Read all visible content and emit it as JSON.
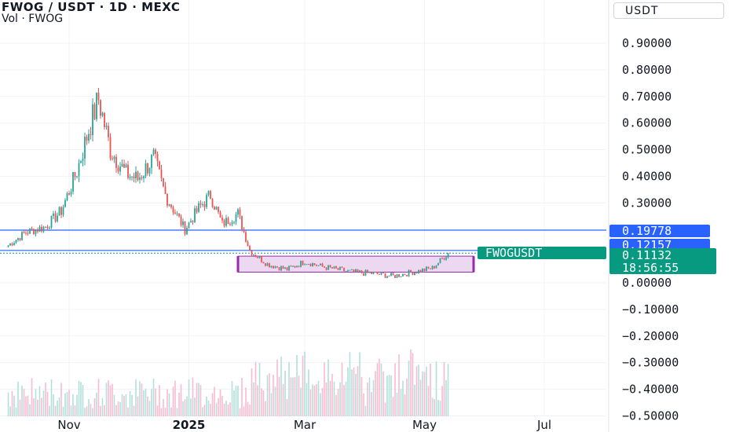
{
  "header": {
    "title": "FWOG / USDT · 1D · MEXC",
    "volume_label": "Vol · FWOG",
    "currency": "USDT"
  },
  "price_tags": {
    "upper_line": "0.19778",
    "lower_line": "0.12157",
    "symbol": "FWOGUSDT",
    "last_price": "0.11132",
    "countdown": "18:56:55"
  },
  "colors": {
    "up": "#26a69a",
    "down": "#ef5350",
    "line": "#2962ff",
    "box_fill": "#e1bee7",
    "box_stroke": "#9c27b0",
    "volume_up": "#b2dfdb",
    "volume_down": "#f8bbd0"
  },
  "chart_data": {
    "type": "candlestick",
    "y_axis": {
      "min": -0.5,
      "max": 1.0,
      "ticks": [
        "0.90000",
        "0.80000",
        "0.70000",
        "0.60000",
        "0.50000",
        "0.40000",
        "0.30000",
        "0.00000",
        "−0.10000",
        "−0.20000",
        "−0.30000",
        "−0.40000",
        "−0.50000"
      ]
    },
    "x_axis": {
      "ticks": [
        "Nov",
        "2025",
        "Mar",
        "May",
        "Jul"
      ]
    },
    "horizontal_lines": [
      0.19778,
      0.12157
    ],
    "rectangle": {
      "from": "2025-01-26",
      "to": "2025-05-26",
      "top": 0.1,
      "bottom": 0.04
    },
    "anchors": [
      [
        "2024-10-01",
        0.14
      ],
      [
        "2024-10-10",
        0.19
      ],
      [
        "2024-10-20",
        0.21
      ],
      [
        "2024-10-28",
        0.27
      ],
      [
        "2024-11-05",
        0.42
      ],
      [
        "2024-11-12",
        0.6
      ],
      [
        "2024-11-16",
        0.69
      ],
      [
        "2024-11-22",
        0.5
      ],
      [
        "2024-11-30",
        0.41
      ],
      [
        "2024-12-06",
        0.39
      ],
      [
        "2024-12-14",
        0.47
      ],
      [
        "2024-12-20",
        0.33
      ],
      [
        "2024-12-30",
        0.2
      ],
      [
        "2025-01-06",
        0.28
      ],
      [
        "2025-01-12",
        0.33
      ],
      [
        "2025-01-18",
        0.22
      ],
      [
        "2025-01-26",
        0.26
      ],
      [
        "2025-02-01",
        0.12
      ],
      [
        "2025-02-10",
        0.07
      ],
      [
        "2025-02-20",
        0.05
      ],
      [
        "2025-03-01",
        0.08
      ],
      [
        "2025-03-10",
        0.06
      ],
      [
        "2025-03-25",
        0.04
      ],
      [
        "2025-04-05",
        0.035
      ],
      [
        "2025-04-15",
        0.025
      ],
      [
        "2025-04-25",
        0.04
      ],
      [
        "2025-05-05",
        0.055
      ],
      [
        "2025-05-10",
        0.09
      ],
      [
        "2025-05-13",
        0.11132
      ]
    ]
  }
}
